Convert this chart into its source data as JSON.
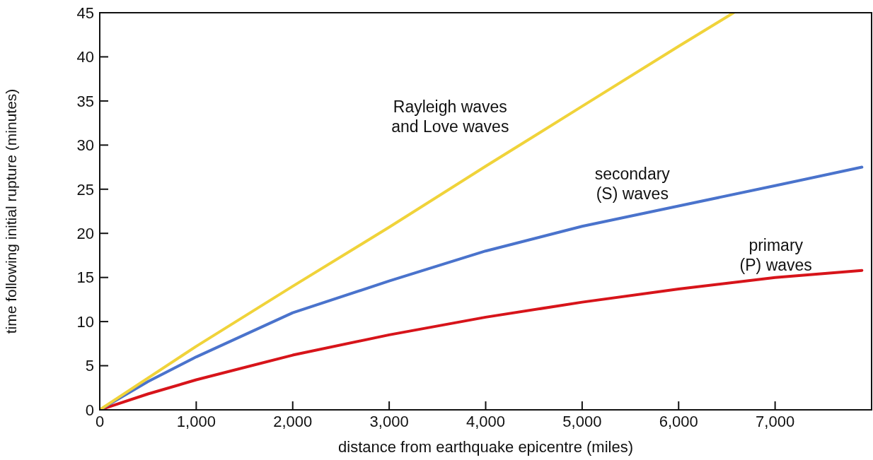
{
  "chart_data": {
    "type": "line",
    "xlabel": "distance from earthquake epicentre (miles)",
    "ylabel": "time following initial rupture (minutes)",
    "xlim": [
      0,
      8000
    ],
    "ylim": [
      0,
      45
    ],
    "xticks": [
      0,
      {
        "value": 1000,
        "label": "1,000"
      },
      {
        "value": 2000,
        "label": "2,000"
      },
      {
        "value": 3000,
        "label": "3,000"
      },
      {
        "value": 4000,
        "label": "4,000"
      },
      {
        "value": 5000,
        "label": "5,000"
      },
      {
        "value": 6000,
        "label": "6,000"
      },
      {
        "value": 7000,
        "label": "7,000"
      }
    ],
    "yticks": [
      0,
      5,
      10,
      15,
      20,
      25,
      30,
      35,
      40,
      45
    ],
    "legend": false,
    "marker": "none",
    "line_style": "solid",
    "series": [
      {
        "name": "primary (P) waves",
        "color": "#d7141a",
        "x": [
          0,
          500,
          1000,
          2000,
          3000,
          4000,
          5000,
          6000,
          7000,
          7900
        ],
        "values": [
          0,
          1.8,
          3.4,
          6.2,
          8.5,
          10.5,
          12.2,
          13.7,
          15.0,
          15.8
        ]
      },
      {
        "name": "secondary (S) waves",
        "color": "#4a73cc",
        "x": [
          0,
          500,
          1000,
          2000,
          3000,
          4000,
          5000,
          6000,
          7000,
          7900
        ],
        "values": [
          0,
          3.2,
          6.0,
          11.0,
          14.6,
          18.0,
          20.8,
          23.1,
          25.4,
          27.5
        ]
      },
      {
        "name": "Rayleigh waves and Love waves",
        "color": "#f0d33a",
        "x": [
          0,
          1000,
          2000,
          3000,
          4000,
          5000,
          6000,
          6570
        ],
        "values": [
          0,
          7.2,
          14.0,
          20.7,
          27.6,
          34.4,
          41.2,
          45
        ]
      }
    ]
  }
}
